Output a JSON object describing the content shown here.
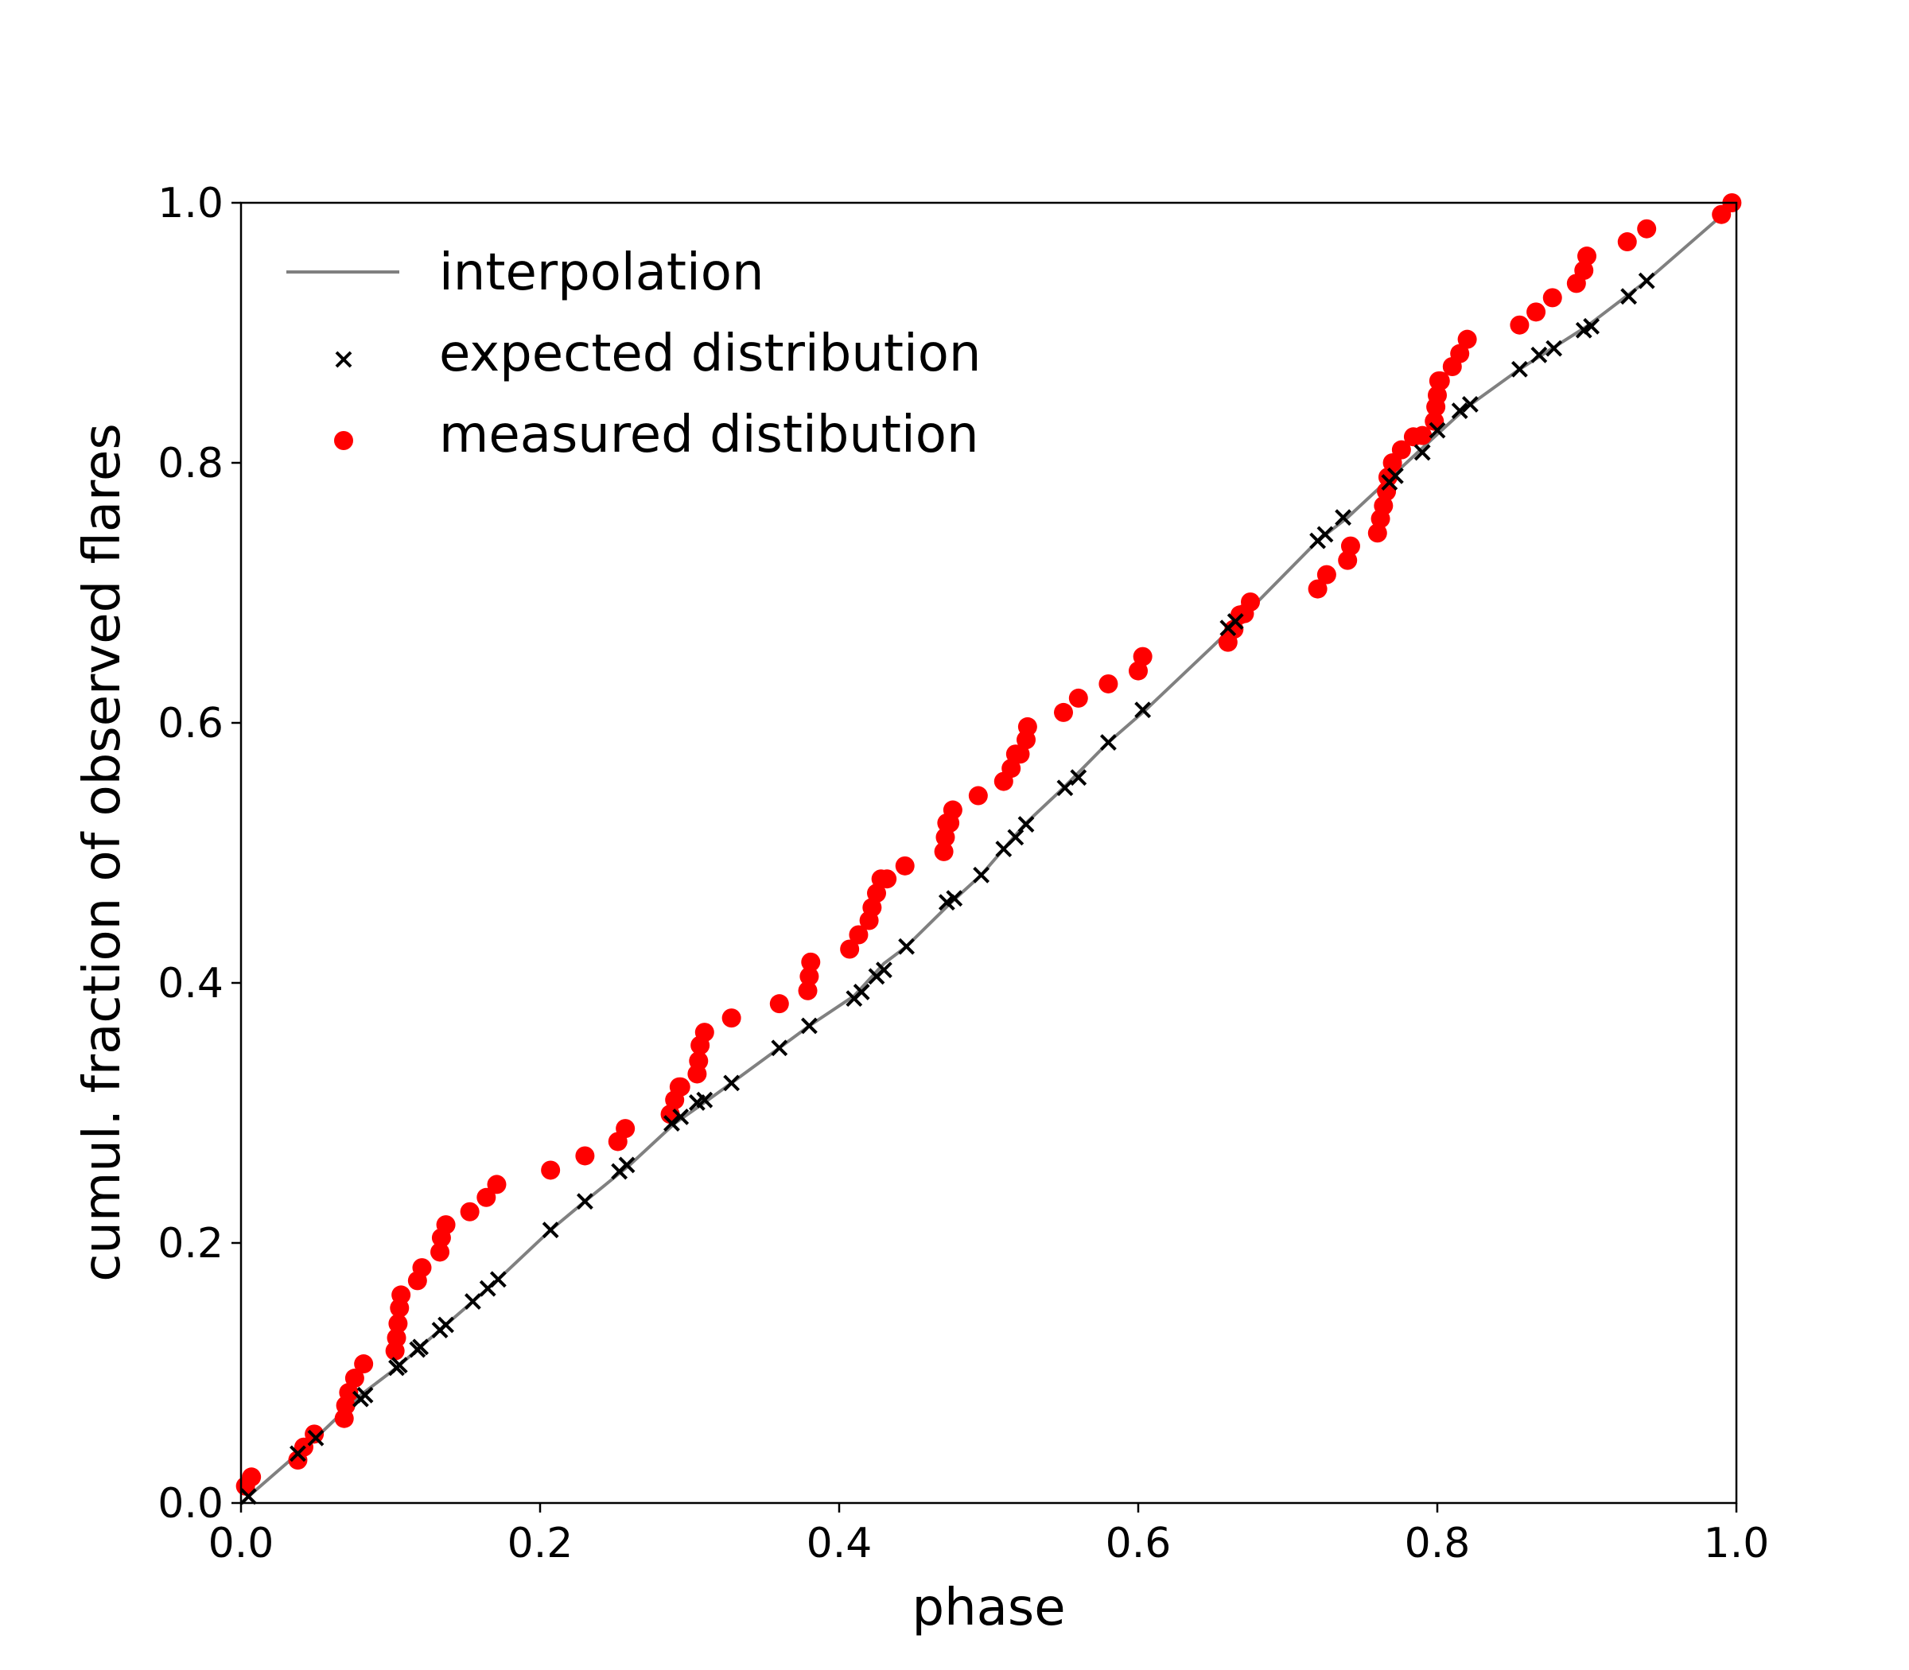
{
  "chart_data": {
    "type": "scatter",
    "title": "",
    "xlabel": "phase",
    "ylabel": "cumul. fraction of observed flares",
    "xlim": [
      0,
      1
    ],
    "ylim": [
      0,
      1
    ],
    "xticks": [
      "0.0",
      "0.2",
      "0.4",
      "0.6",
      "0.8",
      "1.0"
    ],
    "yticks": [
      "0.0",
      "0.2",
      "0.4",
      "0.6",
      "0.8",
      "1.0"
    ],
    "grid": false,
    "legend_position": "top-left",
    "colors": {
      "interpolation": "#808080",
      "expected": "#000000",
      "measured": "#ff0000"
    },
    "series": [
      {
        "name": "interpolation",
        "kind": "line",
        "x": [
          0.0,
          0.038,
          0.05,
          0.08,
          0.104,
          0.12,
          0.135,
          0.155,
          0.172,
          0.207,
          0.23,
          0.26,
          0.29,
          0.31,
          0.328,
          0.36,
          0.38,
          0.41,
          0.43,
          0.445,
          0.475,
          0.495,
          0.51,
          0.525,
          0.55,
          0.58,
          0.605,
          0.66,
          0.72,
          0.74,
          0.77,
          0.8,
          0.82,
          0.855,
          0.9,
          0.94,
          1.0
        ],
        "y": [
          0.0,
          0.038,
          0.05,
          0.083,
          0.104,
          0.12,
          0.135,
          0.155,
          0.172,
          0.21,
          0.232,
          0.26,
          0.292,
          0.308,
          0.323,
          0.35,
          0.367,
          0.39,
          0.415,
          0.428,
          0.462,
          0.483,
          0.503,
          0.523,
          0.55,
          0.585,
          0.61,
          0.67,
          0.74,
          0.758,
          0.79,
          0.822,
          0.843,
          0.872,
          0.905,
          0.94,
          1.0
        ]
      },
      {
        "name": "expected distribution",
        "kind": "x-marker",
        "x": [
          0.005,
          0.038,
          0.05,
          0.08,
          0.083,
          0.104,
          0.106,
          0.118,
          0.12,
          0.133,
          0.137,
          0.155,
          0.165,
          0.172,
          0.207,
          0.23,
          0.253,
          0.258,
          0.288,
          0.294,
          0.305,
          0.31,
          0.328,
          0.36,
          0.38,
          0.41,
          0.415,
          0.425,
          0.43,
          0.445,
          0.472,
          0.477,
          0.495,
          0.51,
          0.518,
          0.525,
          0.551,
          0.56,
          0.58,
          0.603,
          0.66,
          0.665,
          0.72,
          0.725,
          0.737,
          0.768,
          0.772,
          0.79,
          0.8,
          0.815,
          0.822,
          0.855,
          0.868,
          0.878,
          0.898,
          0.903,
          0.928,
          0.94
        ],
        "y": [
          0.005,
          0.038,
          0.05,
          0.08,
          0.083,
          0.104,
          0.106,
          0.118,
          0.12,
          0.133,
          0.137,
          0.155,
          0.165,
          0.172,
          0.21,
          0.232,
          0.255,
          0.26,
          0.292,
          0.297,
          0.308,
          0.31,
          0.323,
          0.35,
          0.367,
          0.388,
          0.393,
          0.405,
          0.41,
          0.428,
          0.462,
          0.465,
          0.483,
          0.503,
          0.512,
          0.522,
          0.55,
          0.558,
          0.585,
          0.61,
          0.673,
          0.678,
          0.74,
          0.745,
          0.758,
          0.785,
          0.79,
          0.808,
          0.825,
          0.84,
          0.845,
          0.872,
          0.883,
          0.888,
          0.902,
          0.905,
          0.928,
          0.94
        ]
      },
      {
        "name": "measured distibution",
        "kind": "dot",
        "x": [
          0.003,
          0.007,
          0.038,
          0.042,
          0.049,
          0.069,
          0.07,
          0.072,
          0.076,
          0.082,
          0.103,
          0.104,
          0.105,
          0.106,
          0.107,
          0.118,
          0.121,
          0.133,
          0.134,
          0.137,
          0.153,
          0.164,
          0.171,
          0.207,
          0.23,
          0.252,
          0.257,
          0.287,
          0.29,
          0.293,
          0.294,
          0.305,
          0.306,
          0.307,
          0.31,
          0.328,
          0.36,
          0.379,
          0.38,
          0.381,
          0.407,
          0.413,
          0.42,
          0.422,
          0.425,
          0.428,
          0.432,
          0.444,
          0.47,
          0.471,
          0.472,
          0.474,
          0.476,
          0.493,
          0.51,
          0.515,
          0.518,
          0.521,
          0.525,
          0.526,
          0.55,
          0.56,
          0.58,
          0.6,
          0.603,
          0.66,
          0.664,
          0.668,
          0.671,
          0.675,
          0.72,
          0.726,
          0.74,
          0.742,
          0.76,
          0.762,
          0.764,
          0.766,
          0.767,
          0.77,
          0.776,
          0.784,
          0.79,
          0.798,
          0.799,
          0.8,
          0.801,
          0.802,
          0.81,
          0.815,
          0.82,
          0.855,
          0.866,
          0.877,
          0.893,
          0.898,
          0.9,
          0.927,
          0.94,
          0.99,
          0.997
        ],
        "y": [
          0.013,
          0.02,
          0.033,
          0.043,
          0.053,
          0.065,
          0.075,
          0.085,
          0.096,
          0.107,
          0.117,
          0.127,
          0.138,
          0.15,
          0.16,
          0.171,
          0.181,
          0.193,
          0.204,
          0.214,
          0.224,
          0.235,
          0.245,
          0.256,
          0.267,
          0.278,
          0.288,
          0.299,
          0.31,
          0.32,
          0.32,
          0.33,
          0.34,
          0.352,
          0.362,
          0.373,
          0.384,
          0.394,
          0.405,
          0.416,
          0.426,
          0.437,
          0.448,
          0.458,
          0.469,
          0.48,
          0.48,
          0.49,
          0.501,
          0.512,
          0.523,
          0.523,
          0.533,
          0.544,
          0.555,
          0.565,
          0.576,
          0.576,
          0.587,
          0.597,
          0.608,
          0.619,
          0.63,
          0.64,
          0.651,
          0.662,
          0.672,
          0.683,
          0.684,
          0.693,
          0.703,
          0.714,
          0.725,
          0.736,
          0.746,
          0.757,
          0.767,
          0.778,
          0.789,
          0.8,
          0.81,
          0.82,
          0.821,
          0.832,
          0.843,
          0.852,
          0.863,
          0.863,
          0.874,
          0.884,
          0.895,
          0.906,
          0.916,
          0.927,
          0.938,
          0.948,
          0.959,
          0.97,
          0.98,
          0.991,
          1.0
        ]
      }
    ],
    "legend": [
      {
        "label": "interpolation",
        "marker": "line"
      },
      {
        "label": "expected distribution",
        "marker": "x"
      },
      {
        "label": "measured distibution",
        "marker": "dot"
      }
    ]
  }
}
